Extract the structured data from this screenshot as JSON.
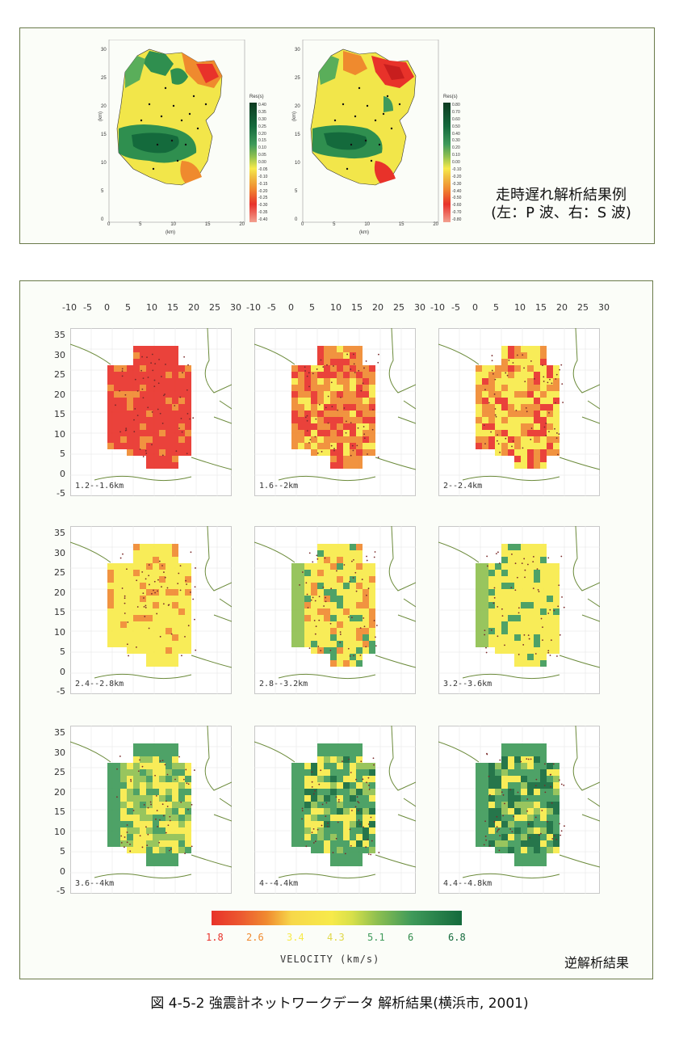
{
  "top": {
    "title_line1": "走時遅れ解析結果例",
    "title_line2": "(左：P 波、右：S 波)",
    "y_label": "(km)",
    "x_label": "(km)",
    "x_ticks": [
      "0",
      "5",
      "10",
      "15",
      "20"
    ],
    "y_ticks": [
      "30",
      "25",
      "20",
      "15",
      "10",
      "5",
      "0"
    ],
    "left_colorbar": {
      "title": "Res(s)",
      "labels": [
        "0.40",
        "0.35",
        "0.30",
        "0.25",
        "0.20",
        "0.15",
        "0.10",
        "0.05",
        "0.00",
        "-0.05",
        "-0.10",
        "-0.15",
        "-0.20",
        "-0.25",
        "-0.30",
        "-0.35",
        "-0.40"
      ]
    },
    "right_colorbar": {
      "title": "Res(s)",
      "labels": [
        "0.80",
        "0.70",
        "0.60",
        "0.50",
        "0.40",
        "0.30",
        "0.20",
        "0.10",
        "0.00",
        "-0.10",
        "-0.20",
        "-0.30",
        "-0.40",
        "-0.50",
        "-0.60",
        "-0.70",
        "-0.80"
      ]
    }
  },
  "bottom": {
    "x_ticks": [
      "-10",
      "-5",
      "0",
      "5",
      "10",
      "15",
      "20",
      "25",
      "30"
    ],
    "y_ticks": [
      "35",
      "30",
      "25",
      "20",
      "15",
      "10",
      "5",
      "0",
      "-5"
    ],
    "depths": [
      "1.2--1.6km",
      "1.6--2km",
      "2--2.4km",
      "2.4--2.8km",
      "2.8--3.2km",
      "3.2--3.6km",
      "3.6--4km",
      "4--4.4km",
      "4.4--4.8km"
    ],
    "velocity_title": "VELOCITY (km/s)",
    "velocity_ticks": [
      "1.8",
      "2.6",
      "3.4",
      "4.3",
      "5.1",
      "6",
      "6.8"
    ],
    "inversion_label": "逆解析結果"
  },
  "colors": {
    "red": "#e8322a",
    "orange": "#f08a30",
    "yellow": "#f7ea4a",
    "green_light": "#8fc050",
    "green": "#3f9a5a",
    "green_dark": "#146a3c"
  },
  "caption": "図 4-5-2  強震計ネットワークデータ 解析結果(横浜市, 2001)"
}
